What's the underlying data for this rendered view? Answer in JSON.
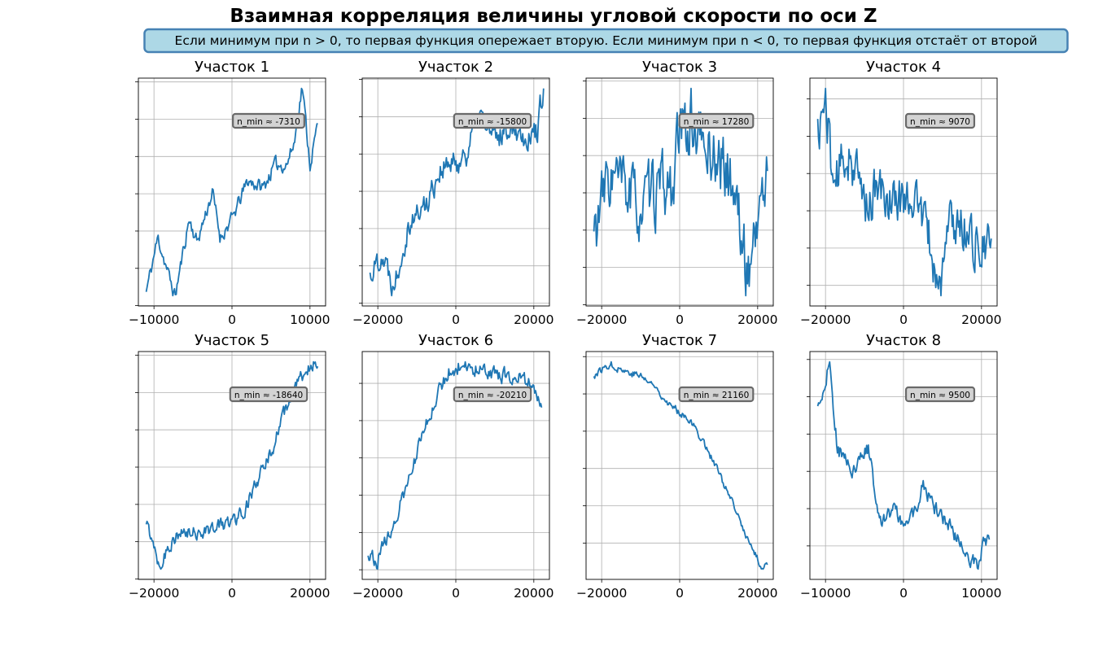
{
  "title": "Взаимная корреляция величины угловой скорости по оси Z",
  "note": "Если минимум при n > 0, то первая функция опережает вторую. Если минимум при n < 0, то первая функция отстаёт от второй",
  "colors": {
    "line": "#1f77b4",
    "grid": "#b0b0b0",
    "note_bg": "#add8e6",
    "note_border": "#4682b4",
    "badge_bg": "#d3d3d3",
    "badge_border": "#696969"
  },
  "chart_data": [
    {
      "type": "line",
      "title": "Участок 1",
      "annotation": "n_min ≈ -7310",
      "xlim": [
        -12000,
        12000
      ],
      "xticks": [
        -10000,
        0,
        10000
      ],
      "xtick_labels": [
        "−10000",
        "0",
        "10000"
      ],
      "grid": true,
      "seed": 11,
      "anchors": [
        [
          -11000,
          0.06
        ],
        [
          -9500,
          0.3
        ],
        [
          -8000,
          0.12
        ],
        [
          -7300,
          0.04
        ],
        [
          -5500,
          0.38
        ],
        [
          -4500,
          0.28
        ],
        [
          -2500,
          0.5
        ],
        [
          -1500,
          0.3
        ],
        [
          0,
          0.38
        ],
        [
          2000,
          0.55
        ],
        [
          4000,
          0.52
        ],
        [
          5500,
          0.62
        ],
        [
          7000,
          0.62
        ],
        [
          8000,
          0.72
        ],
        [
          9000,
          0.97
        ],
        [
          10000,
          0.62
        ],
        [
          11000,
          0.8
        ]
      ],
      "noise": 0.05,
      "seg": 100
    },
    {
      "type": "line",
      "title": "Участок 2",
      "annotation": "n_min ≈ -15800",
      "xlim": [
        -24000,
        24000
      ],
      "xticks": [
        -20000,
        0,
        20000
      ],
      "xtick_labels": [
        "−20000",
        "0",
        "20000"
      ],
      "grid": true,
      "seed": 22,
      "anchors": [
        [
          -22000,
          0.12
        ],
        [
          -19000,
          0.22
        ],
        [
          -16000,
          0.08
        ],
        [
          -12000,
          0.35
        ],
        [
          -8000,
          0.42
        ],
        [
          -4000,
          0.58
        ],
        [
          0,
          0.6
        ],
        [
          3000,
          0.66
        ],
        [
          6000,
          0.82
        ],
        [
          10000,
          0.7
        ],
        [
          14000,
          0.78
        ],
        [
          18000,
          0.72
        ],
        [
          21000,
          0.75
        ],
        [
          22500,
          0.95
        ]
      ],
      "noise": 0.09,
      "seg": 250
    },
    {
      "type": "line",
      "title": "Участок 3",
      "annotation": "n_min ≈ 17280",
      "xlim": [
        -24000,
        24000
      ],
      "xticks": [
        -20000,
        0,
        20000
      ],
      "xtick_labels": [
        "−20000",
        "0",
        "20000"
      ],
      "grid": true,
      "seed": 33,
      "anchors": [
        [
          -22000,
          0.3
        ],
        [
          -18000,
          0.55
        ],
        [
          -14000,
          0.5
        ],
        [
          -10000,
          0.4
        ],
        [
          -6000,
          0.48
        ],
        [
          -2000,
          0.5
        ],
        [
          0,
          0.72
        ],
        [
          3000,
          0.78
        ],
        [
          6000,
          0.68
        ],
        [
          10000,
          0.62
        ],
        [
          14000,
          0.5
        ],
        [
          17280,
          0.12
        ],
        [
          20000,
          0.38
        ],
        [
          22500,
          0.55
        ]
      ],
      "noise": 0.22,
      "seg": 250
    },
    {
      "type": "line",
      "title": "Участок 4",
      "annotation": "n_min ≈ 9070",
      "xlim": [
        -24000,
        24000
      ],
      "xticks": [
        -20000,
        0,
        20000
      ],
      "xtick_labels": [
        "−20000",
        "0",
        "20000"
      ],
      "grid": true,
      "seed": 44,
      "anchors": [
        [
          -22000,
          0.75
        ],
        [
          -20000,
          0.88
        ],
        [
          -18000,
          0.55
        ],
        [
          -14000,
          0.68
        ],
        [
          -10000,
          0.48
        ],
        [
          -6000,
          0.52
        ],
        [
          -2000,
          0.48
        ],
        [
          2000,
          0.52
        ],
        [
          6000,
          0.38
        ],
        [
          9070,
          0.12
        ],
        [
          12000,
          0.4
        ],
        [
          16000,
          0.38
        ],
        [
          20000,
          0.28
        ],
        [
          22500,
          0.3
        ]
      ],
      "noise": 0.16,
      "seg": 250
    },
    {
      "type": "line",
      "title": "Участок 5",
      "annotation": "n_min ≈ -18640",
      "xlim": [
        -24000,
        24000
      ],
      "xticks": [
        -20000,
        0,
        20000
      ],
      "xtick_labels": [
        "−20000",
        "0",
        "20000"
      ],
      "grid": true,
      "seed": 55,
      "anchors": [
        [
          -22000,
          0.24
        ],
        [
          -20000,
          0.16
        ],
        [
          -18640,
          0.06
        ],
        [
          -15000,
          0.18
        ],
        [
          -10000,
          0.2
        ],
        [
          -5000,
          0.22
        ],
        [
          0,
          0.25
        ],
        [
          3000,
          0.3
        ],
        [
          6000,
          0.4
        ],
        [
          10000,
          0.55
        ],
        [
          14000,
          0.75
        ],
        [
          18000,
          0.88
        ],
        [
          20000,
          0.93
        ],
        [
          22000,
          0.95
        ]
      ],
      "noise": 0.05,
      "seg": 250
    },
    {
      "type": "line",
      "title": "Участок 6",
      "annotation": "n_min ≈ -20210",
      "xlim": [
        -24000,
        24000
      ],
      "xticks": [
        -20000,
        0,
        20000
      ],
      "xtick_labels": [
        "−20000",
        "0",
        "20000"
      ],
      "grid": true,
      "seed": 66,
      "anchors": [
        [
          -22500,
          0.08
        ],
        [
          -20210,
          0.04
        ],
        [
          -18000,
          0.12
        ],
        [
          -14000,
          0.28
        ],
        [
          -10000,
          0.5
        ],
        [
          -6000,
          0.7
        ],
        [
          -2000,
          0.85
        ],
        [
          2000,
          0.88
        ],
        [
          6000,
          0.85
        ],
        [
          12000,
          0.83
        ],
        [
          16000,
          0.82
        ],
        [
          19000,
          0.8
        ],
        [
          22000,
          0.72
        ]
      ],
      "noise": 0.05,
      "seg": 250
    },
    {
      "type": "line",
      "title": "Участок 7",
      "annotation": "n_min ≈ 21160",
      "xlim": [
        -24000,
        24000
      ],
      "xticks": [
        -20000,
        0,
        20000
      ],
      "xtick_labels": [
        "−20000",
        "0",
        "20000"
      ],
      "grid": true,
      "seed": 77,
      "anchors": [
        [
          -22000,
          0.85
        ],
        [
          -18000,
          0.9
        ],
        [
          -14000,
          0.87
        ],
        [
          -10000,
          0.85
        ],
        [
          -6000,
          0.8
        ],
        [
          -2000,
          0.72
        ],
        [
          2000,
          0.68
        ],
        [
          6000,
          0.58
        ],
        [
          10000,
          0.45
        ],
        [
          14000,
          0.3
        ],
        [
          18000,
          0.15
        ],
        [
          21160,
          0.05
        ],
        [
          22500,
          0.07
        ]
      ],
      "noise": 0.025,
      "seg": 250
    },
    {
      "type": "line",
      "title": "Участок 8",
      "annotation": "n_min ≈ 9500",
      "xlim": [
        -12000,
        12000
      ],
      "xticks": [
        -10000,
        0,
        10000
      ],
      "xtick_labels": [
        "−10000",
        "0",
        "10000"
      ],
      "grid": true,
      "seed": 88,
      "anchors": [
        [
          -11000,
          0.7
        ],
        [
          -10000,
          0.82
        ],
        [
          -9500,
          0.9
        ],
        [
          -8500,
          0.55
        ],
        [
          -6500,
          0.45
        ],
        [
          -4500,
          0.55
        ],
        [
          -3000,
          0.25
        ],
        [
          -1500,
          0.3
        ],
        [
          0,
          0.25
        ],
        [
          1500,
          0.28
        ],
        [
          2500,
          0.4
        ],
        [
          4000,
          0.3
        ],
        [
          5500,
          0.25
        ],
        [
          7000,
          0.18
        ],
        [
          8500,
          0.1
        ],
        [
          9500,
          0.06
        ],
        [
          10500,
          0.18
        ],
        [
          11000,
          0.16
        ]
      ],
      "noise": 0.05,
      "seg": 100
    }
  ]
}
